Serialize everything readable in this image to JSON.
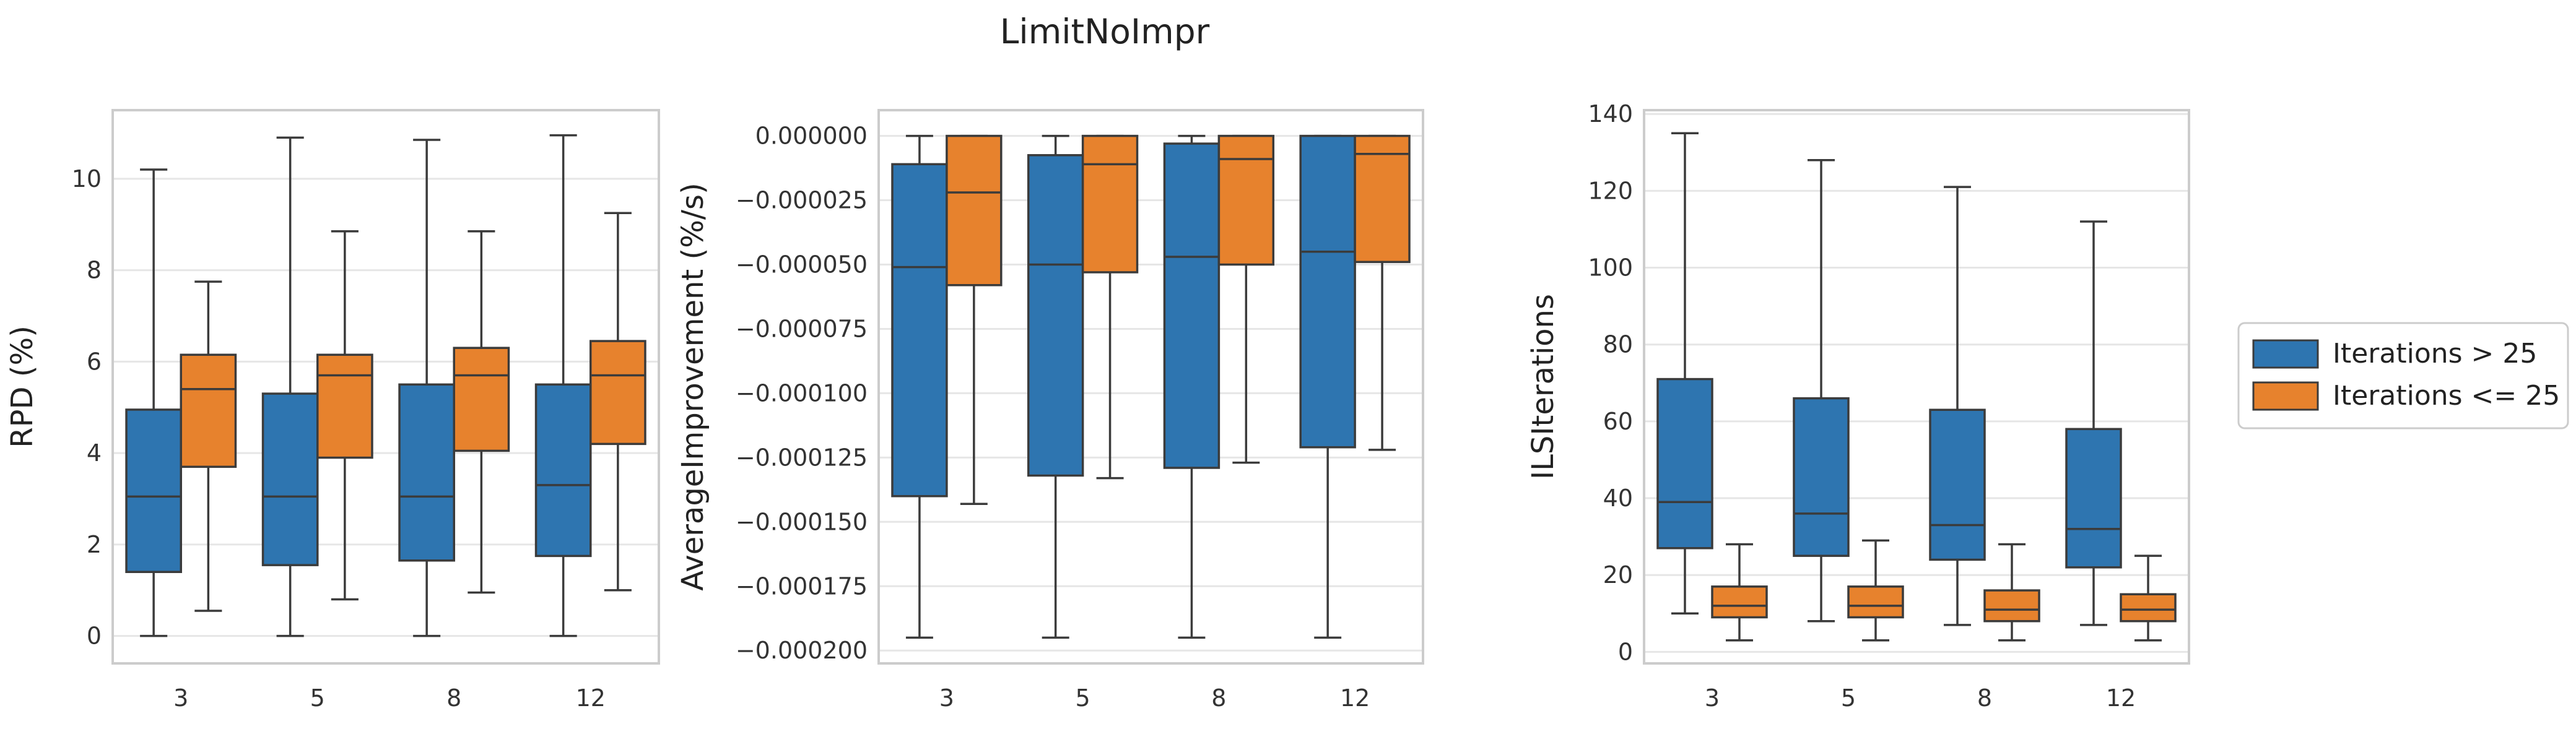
{
  "figure": {
    "title": "LimitNoImpr",
    "legend": {
      "placement": "right",
      "entries": [
        {
          "label": "Iterations > 25",
          "color": "#2e75b0"
        },
        {
          "label": "Iterations <= 25",
          "color": "#e7822d"
        }
      ]
    }
  },
  "chart_data": [
    {
      "type": "box",
      "xlabel": "",
      "ylabel": "RPD (%)",
      "categories": [
        "3",
        "5",
        "8",
        "12"
      ],
      "ylim": [
        -0.6,
        11.5
      ],
      "yticks": [
        0,
        2,
        4,
        6,
        8,
        10
      ],
      "ytick_labels": [
        "0",
        "2",
        "4",
        "6",
        "8",
        "10"
      ],
      "grid": true,
      "series": [
        {
          "name": "Iterations > 25",
          "color": "#2e75b0",
          "boxes": [
            {
              "min": 0.0,
              "q1": 1.4,
              "median": 3.05,
              "q3": 4.95,
              "max": 10.2
            },
            {
              "min": 0.0,
              "q1": 1.55,
              "median": 3.05,
              "q3": 5.3,
              "max": 10.9
            },
            {
              "min": 0.0,
              "q1": 1.65,
              "median": 3.05,
              "q3": 5.5,
              "max": 10.85
            },
            {
              "min": 0.0,
              "q1": 1.75,
              "median": 3.3,
              "q3": 5.5,
              "max": 10.95
            }
          ]
        },
        {
          "name": "Iterations <= 25",
          "color": "#e7822d",
          "boxes": [
            {
              "min": 0.55,
              "q1": 3.7,
              "median": 5.4,
              "q3": 6.15,
              "max": 7.75
            },
            {
              "min": 0.8,
              "q1": 3.9,
              "median": 5.7,
              "q3": 6.15,
              "max": 8.85
            },
            {
              "min": 0.95,
              "q1": 4.05,
              "median": 5.7,
              "q3": 6.3,
              "max": 8.85
            },
            {
              "min": 1.0,
              "q1": 4.2,
              "median": 5.7,
              "q3": 6.45,
              "max": 9.25
            }
          ]
        }
      ]
    },
    {
      "type": "box",
      "xlabel": "",
      "ylabel": "AverageImprovement (%/s)",
      "categories": [
        "3",
        "5",
        "8",
        "12"
      ],
      "ylim": [
        -0.000205,
        1e-05
      ],
      "yticks": [
        0,
        -2.5e-05,
        -5e-05,
        -7.5e-05,
        -0.0001,
        -0.000125,
        -0.00015,
        -0.000175,
        -0.0002
      ],
      "ytick_labels": [
        "0.000000",
        "−0.000025",
        "−0.000050",
        "−0.000075",
        "−0.000100",
        "−0.000125",
        "−0.000150",
        "−0.000175",
        "−0.000200"
      ],
      "grid": true,
      "series": [
        {
          "name": "Iterations > 25",
          "color": "#2e75b0",
          "boxes": [
            {
              "min": -0.000195,
              "q1": -0.00014,
              "median": -5.1e-05,
              "q3": -1.1e-05,
              "max": 0.0
            },
            {
              "min": -0.000195,
              "q1": -0.000132,
              "median": -5e-05,
              "q3": -7.5e-06,
              "max": 0.0
            },
            {
              "min": -0.000195,
              "q1": -0.000129,
              "median": -4.7e-05,
              "q3": -3e-06,
              "max": 0.0
            },
            {
              "min": -0.000195,
              "q1": -0.000121,
              "median": -4.5e-05,
              "q3": 0.0,
              "max": 0.0
            }
          ]
        },
        {
          "name": "Iterations <= 25",
          "color": "#e7822d",
          "boxes": [
            {
              "min": -0.000143,
              "q1": -5.8e-05,
              "median": -2.2e-05,
              "q3": 0.0,
              "max": 0.0
            },
            {
              "min": -0.000133,
              "q1": -5.3e-05,
              "median": -1.1e-05,
              "q3": 0.0,
              "max": 0.0
            },
            {
              "min": -0.000127,
              "q1": -5e-05,
              "median": -9e-06,
              "q3": 0.0,
              "max": 0.0
            },
            {
              "min": -0.000122,
              "q1": -4.9e-05,
              "median": -7e-06,
              "q3": 0.0,
              "max": 0.0
            }
          ]
        }
      ]
    },
    {
      "type": "box",
      "xlabel": "",
      "ylabel": "ILSIterations",
      "categories": [
        "3",
        "5",
        "8",
        "12"
      ],
      "ylim": [
        -3,
        141
      ],
      "yticks": [
        0,
        20,
        40,
        60,
        80,
        100,
        120,
        140
      ],
      "ytick_labels": [
        "0",
        "20",
        "40",
        "60",
        "80",
        "100",
        "120",
        "140"
      ],
      "grid": true,
      "series": [
        {
          "name": "Iterations > 25",
          "color": "#2e75b0",
          "boxes": [
            {
              "min": 10,
              "q1": 27,
              "median": 39,
              "q3": 71,
              "max": 135
            },
            {
              "min": 8,
              "q1": 25,
              "median": 36,
              "q3": 66,
              "max": 128
            },
            {
              "min": 7,
              "q1": 24,
              "median": 33,
              "q3": 63,
              "max": 121
            },
            {
              "min": 7,
              "q1": 22,
              "median": 32,
              "q3": 58,
              "max": 112
            }
          ]
        },
        {
          "name": "Iterations <= 25",
          "color": "#e7822d",
          "boxes": [
            {
              "min": 3,
              "q1": 9,
              "median": 12,
              "q3": 17,
              "max": 28
            },
            {
              "min": 3,
              "q1": 9,
              "median": 12,
              "q3": 17,
              "max": 29
            },
            {
              "min": 3,
              "q1": 8,
              "median": 11,
              "q3": 16,
              "max": 28
            },
            {
              "min": 3,
              "q1": 8,
              "median": 11,
              "q3": 15,
              "max": 25
            }
          ]
        }
      ]
    }
  ]
}
